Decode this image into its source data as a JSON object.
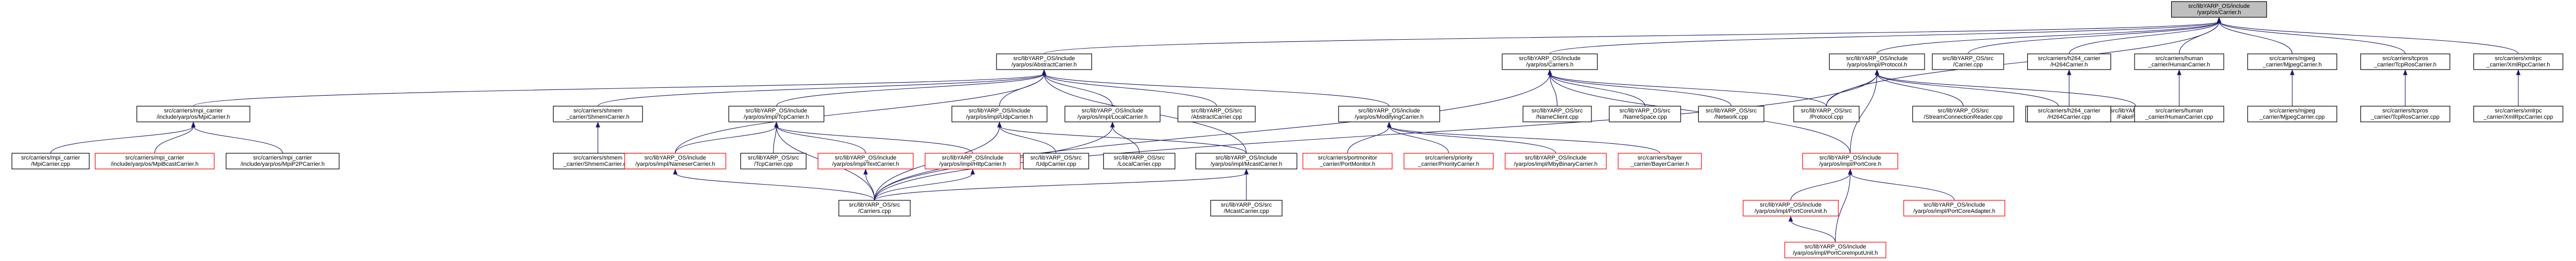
{
  "colors": {
    "edge": "#191970",
    "node_border": "#000000",
    "node_border_missing": "#ff0000",
    "root_fill": "#bfbfbf",
    "node_fill": "#ffffff"
  },
  "nodes": {
    "carrier_h": {
      "lines": [
        "src/libYARP_OS/include",
        "/yarp/os/Carrier.h"
      ],
      "root": true
    },
    "abstractcarrier_h": {
      "lines": [
        "src/libYARP_OS/include",
        "/yarp/os/AbstractCarrier.h"
      ]
    },
    "carriers_h": {
      "lines": [
        "src/libYARP_OS/include",
        "/yarp/os/Carriers.h"
      ]
    },
    "protocol_h": {
      "lines": [
        "src/libYARP_OS/include",
        "/yarp/os/impl/Protocol.h"
      ]
    },
    "carrier_cpp": {
      "lines": [
        "src/libYARP_OS/src",
        "/Carrier.cpp"
      ]
    },
    "h264carrier_h": {
      "lines": [
        "src/carriers/h264_carrier",
        "/H264Carrier.h"
      ]
    },
    "humancarrier_h": {
      "lines": [
        "src/carriers/human",
        "_carrier/HumanCarrier.h"
      ]
    },
    "mjpegcarrier_h": {
      "lines": [
        "src/carriers/mjpeg",
        "_carrier/MjpegCarrier.h"
      ]
    },
    "tcprosc_h": {
      "lines": [
        "src/carriers/tcpros",
        "_carrier/TcpRosCarrier.h"
      ]
    },
    "xmlrpc_h": {
      "lines": [
        "src/carriers/xmlrpc",
        "_carrier/XmlRpcCarrier.h"
      ]
    },
    "mpicarrier_h": {
      "lines": [
        "src/carriers/mpi_carrier",
        "/include/yarp/os/MpiCarrier.h"
      ]
    },
    "shmemcarrier_h": {
      "lines": [
        "src/carriers/shmem",
        "_carrier/ShmemCarrier.h"
      ]
    },
    "tcpcarrier_h": {
      "lines": [
        "src/libYARP_OS/include",
        "/yarp/os/impl/TcpCarrier.h"
      ]
    },
    "udpcarrier_h": {
      "lines": [
        "src/libYARP_OS/include",
        "/yarp/os/impl/UdpCarrier.h"
      ]
    },
    "localcarrier_h": {
      "lines": [
        "src/libYARP_OS/include",
        "/yarp/os/impl/LocalCarrier.h"
      ]
    },
    "abstractcarrier_cpp": {
      "lines": [
        "src/libYARP_OS/src",
        "/AbstractCarrier.cpp"
      ]
    },
    "modifyingcarrier_h": {
      "lines": [
        "src/libYARP_OS/include",
        "/yarp/os/ModifyingCarrier.h"
      ]
    },
    "nameclient_cpp": {
      "lines": [
        "src/libYARP_OS/src",
        "/NameClient.cpp"
      ]
    },
    "namespace_cpp": {
      "lines": [
        "src/libYARP_OS/src",
        "/NameSpace.cpp"
      ]
    },
    "network_cpp": {
      "lines": [
        "src/libYARP_OS/src",
        "/Network.cpp"
      ]
    },
    "protocol_cpp": {
      "lines": [
        "src/libYARP_OS/src",
        "/Protocol.cpp"
      ]
    },
    "streamconn_cpp": {
      "lines": [
        "src/libYARP_OS/src",
        "/StreamConnectionReader.cpp"
      ]
    },
    "tcpface_cpp": {
      "lines": [
        "src/libYARP_OS/src",
        "/TcpFace.cpp"
      ]
    },
    "fakeface_cpp": {
      "lines": [
        "src/libYARP_OS/src",
        "/FakeFace.cpp"
      ]
    },
    "h264carrier_cpp": {
      "lines": [
        "src/carriers/h264_carrier",
        "/H264Carrier.cpp"
      ]
    },
    "humancarrier_cpp": {
      "lines": [
        "src/carriers/human",
        "_carrier/HumanCarrier.cpp"
      ]
    },
    "mjpegcarrier_cpp": {
      "lines": [
        "src/carriers/mjpeg",
        "_carrier/MjpegCarrier.cpp"
      ]
    },
    "tcprosc_cpp": {
      "lines": [
        "src/carriers/tcpros",
        "_carrier/TcpRosCarrier.cpp"
      ]
    },
    "xmlrpc_cpp": {
      "lines": [
        "src/carriers/xmlrpc",
        "_carrier/XmlRpcCarrier.cpp"
      ]
    },
    "mpicarrier_cpp": {
      "lines": [
        "src/carriers/mpi_carrier",
        "/MpiCarrier.cpp"
      ]
    },
    "mpibcast_h": {
      "lines": [
        "src/carriers/mpi_carrier",
        "/include/yarp/os/MpiBcastCarrier.h"
      ],
      "missing": true
    },
    "mpip2p_h": {
      "lines": [
        "src/carriers/mpi_carrier",
        "/include/yarp/os/MpiP2PCarrier.h"
      ]
    },
    "shmemcarrier_cpp": {
      "lines": [
        "src/carriers/shmem",
        "_carrier/ShmemCarrier.cpp"
      ]
    },
    "namesercarrier_h": {
      "lines": [
        "src/libYARP_OS/include",
        "/yarp/os/impl/NameserCarrier.h"
      ],
      "missing": true
    },
    "tcpcarrier_cpp": {
      "lines": [
        "src/libYARP_OS/src",
        "/TcpCarrier.cpp"
      ]
    },
    "textcarrier_h": {
      "lines": [
        "src/libYARP_OS/include",
        "/yarp/os/impl/TextCarrier.h"
      ],
      "missing": true
    },
    "httpcarrier_h": {
      "lines": [
        "src/libYARP_OS/include",
        "/yarp/os/impl/HttpCarrier.h"
      ],
      "missing": true
    },
    "udpcarrier_cpp": {
      "lines": [
        "src/libYARP_OS/src",
        "/UdpCarrier.cpp"
      ]
    },
    "localcarrier_cpp": {
      "lines": [
        "src/libYARP_OS/src",
        "/LocalCarrier.cpp"
      ]
    },
    "mcastcarrier_h": {
      "lines": [
        "src/libYARP_OS/include",
        "/yarp/os/impl/McastCarrier.h"
      ]
    },
    "portmonitor_h": {
      "lines": [
        "src/carriers/portmonitor",
        "_carrier/PortMonitor.h"
      ],
      "missing": true
    },
    "priority_h": {
      "lines": [
        "src/carriers/priority",
        "_carrier/PriorityCarrier.h"
      ],
      "missing": true
    },
    "mbynary_h": {
      "lines": [
        "src/libYARP_OS/include",
        "/yarp/os/impl/MbyBinaryCarrier.h"
      ],
      "missing": true
    },
    "bayer_h": {
      "lines": [
        "src/carriers/bayer",
        "_carrier/BayerCarrier.h"
      ],
      "missing": true
    },
    "portcore_h": {
      "lines": [
        "src/libYARP_OS/include",
        "/yarp/os/impl/PortCore.h"
      ],
      "missing": true
    },
    "carriers_cpp": {
      "lines": [
        "src/libYARP_OS/src",
        "/Carriers.cpp"
      ]
    },
    "mcastcarrier_cpp": {
      "lines": [
        "src/libYARP_OS/src",
        "/McastCarrier.cpp"
      ]
    },
    "portcoreunit_h": {
      "lines": [
        "src/libYARP_OS/include",
        "/yarp/os/impl/PortCoreUnit.h"
      ],
      "missing": true
    },
    "portcoreadapter_h": {
      "lines": [
        "src/libYARP_OS/include",
        "/yarp/os/impl/PortCoreAdapter.h"
      ],
      "missing": true
    },
    "portcoreinputunit_h": {
      "lines": [
        "src/libYARP_OS/include",
        "/yarp/os/impl/PortCoreInputUnit.h"
      ],
      "missing": true
    }
  },
  "edges": [
    [
      "carrier_h",
      "abstractcarrier_h"
    ],
    [
      "carrier_h",
      "carriers_h"
    ],
    [
      "carrier_h",
      "protocol_h"
    ],
    [
      "carrier_h",
      "carrier_cpp"
    ],
    [
      "carrier_h",
      "h264carrier_h"
    ],
    [
      "carrier_h",
      "humancarrier_h"
    ],
    [
      "carrier_h",
      "mjpegcarrier_h"
    ],
    [
      "carrier_h",
      "tcprosc_h"
    ],
    [
      "carrier_h",
      "xmlrpc_h"
    ],
    [
      "carrier_h",
      "protocol_cpp"
    ],
    [
      "abstractcarrier_h",
      "mpicarrier_h"
    ],
    [
      "abstractcarrier_h",
      "shmemcarrier_h"
    ],
    [
      "abstractcarrier_h",
      "tcpcarrier_h"
    ],
    [
      "abstractcarrier_h",
      "udpcarrier_h"
    ],
    [
      "abstractcarrier_h",
      "localcarrier_h"
    ],
    [
      "abstractcarrier_h",
      "abstractcarrier_cpp"
    ],
    [
      "abstractcarrier_h",
      "modifyingcarrier_h"
    ],
    [
      "abstractcarrier_h",
      "mcastcarrier_h"
    ],
    [
      "abstractcarrier_h",
      "namesercarrier_h"
    ],
    [
      "carriers_h",
      "nameclient_cpp"
    ],
    [
      "carriers_h",
      "namespace_cpp"
    ],
    [
      "carriers_h",
      "network_cpp"
    ],
    [
      "carriers_h",
      "protocol_cpp"
    ],
    [
      "carriers_h",
      "carriers_cpp"
    ],
    [
      "carriers_h",
      "portcore_h"
    ],
    [
      "protocol_h",
      "protocol_cpp"
    ],
    [
      "protocol_h",
      "streamconn_cpp"
    ],
    [
      "protocol_h",
      "tcpface_cpp"
    ],
    [
      "protocol_h",
      "fakeface_cpp"
    ],
    [
      "protocol_h",
      "portcore_h"
    ],
    [
      "protocol_h",
      "carriers_cpp"
    ],
    [
      "h264carrier_h",
      "h264carrier_cpp"
    ],
    [
      "humancarrier_h",
      "humancarrier_cpp"
    ],
    [
      "mjpegcarrier_h",
      "mjpegcarrier_cpp"
    ],
    [
      "tcprosc_h",
      "tcprosc_cpp"
    ],
    [
      "xmlrpc_h",
      "xmlrpc_cpp"
    ],
    [
      "mpicarrier_h",
      "mpicarrier_cpp"
    ],
    [
      "mpicarrier_h",
      "mpibcast_h"
    ],
    [
      "mpicarrier_h",
      "mpip2p_h"
    ],
    [
      "shmemcarrier_h",
      "shmemcarrier_cpp"
    ],
    [
      "tcpcarrier_h",
      "namesercarrier_h"
    ],
    [
      "tcpcarrier_h",
      "tcpcarrier_cpp"
    ],
    [
      "tcpcarrier_h",
      "textcarrier_h"
    ],
    [
      "tcpcarrier_h",
      "httpcarrier_h"
    ],
    [
      "tcpcarrier_h",
      "carriers_cpp"
    ],
    [
      "udpcarrier_h",
      "udpcarrier_cpp"
    ],
    [
      "udpcarrier_h",
      "mcastcarrier_h"
    ],
    [
      "udpcarrier_h",
      "carriers_cpp"
    ],
    [
      "localcarrier_h",
      "localcarrier_cpp"
    ],
    [
      "localcarrier_h",
      "carriers_cpp"
    ],
    [
      "modifyingcarrier_h",
      "portmonitor_h"
    ],
    [
      "modifyingcarrier_h",
      "priority_h"
    ],
    [
      "modifyingcarrier_h",
      "mbynary_h"
    ],
    [
      "modifyingcarrier_h",
      "bayer_h"
    ],
    [
      "namesercarrier_h",
      "carriers_cpp"
    ],
    [
      "textcarrier_h",
      "carriers_cpp"
    ],
    [
      "httpcarrier_h",
      "carriers_cpp"
    ],
    [
      "mcastcarrier_h",
      "carriers_cpp"
    ],
    [
      "mcastcarrier_h",
      "mcastcarrier_cpp"
    ],
    [
      "portcore_h",
      "portcoreunit_h"
    ],
    [
      "portcore_h",
      "portcoreadapter_h"
    ],
    [
      "portcore_h",
      "portcoreinputunit_h"
    ],
    [
      "portcoreunit_h",
      "portcoreinputunit_h"
    ]
  ]
}
